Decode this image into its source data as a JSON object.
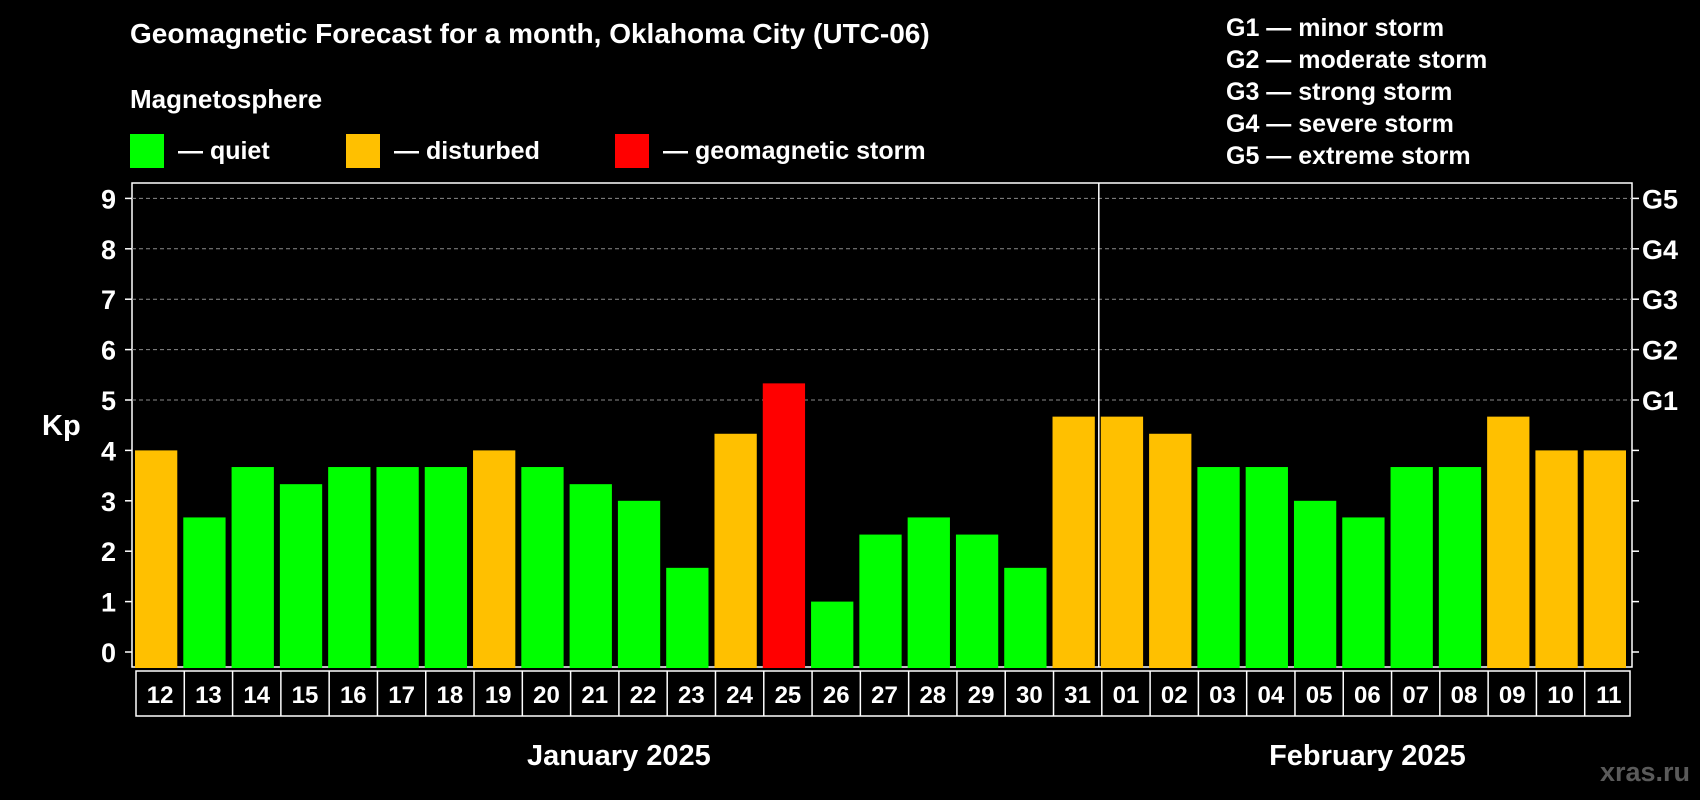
{
  "header": {
    "title": "Geomagnetic Forecast for a month, Oklahoma City (UTC-06)",
    "magnetosphere_label": "Magnetosphere"
  },
  "legend": [
    {
      "label": "— quiet",
      "color": "#00ff00"
    },
    {
      "label": "— disturbed",
      "color": "#ffc000"
    },
    {
      "label": "— geomagnetic storm",
      "color": "#ff0000"
    }
  ],
  "storm_scale": [
    "G1 — minor storm",
    "G2 — moderate storm",
    "G3 — strong storm",
    "G4 — severe storm",
    "G5 — extreme storm"
  ],
  "watermark": "xras.ru",
  "chart_data": {
    "type": "bar",
    "title": "Geomagnetic Forecast for a month, Oklahoma City (UTC-06)",
    "ylabel": "Kp",
    "ylim": [
      0,
      9
    ],
    "yticks": [
      0,
      1,
      2,
      3,
      4,
      5,
      6,
      7,
      8,
      9
    ],
    "right_ticks": [
      {
        "value": 5,
        "label": "G1"
      },
      {
        "value": 6,
        "label": "G2"
      },
      {
        "value": 7,
        "label": "G3"
      },
      {
        "value": 8,
        "label": "G4"
      },
      {
        "value": 9,
        "label": "G5"
      }
    ],
    "grid": "dashed horizontal at 5–9",
    "categories": [
      "12",
      "13",
      "14",
      "15",
      "16",
      "17",
      "18",
      "19",
      "20",
      "21",
      "22",
      "23",
      "24",
      "25",
      "26",
      "27",
      "28",
      "29",
      "30",
      "31",
      "01",
      "02",
      "03",
      "04",
      "05",
      "06",
      "07",
      "08",
      "09",
      "10",
      "11"
    ],
    "values": [
      4.0,
      2.67,
      3.67,
      3.33,
      3.67,
      3.67,
      3.67,
      4.0,
      3.67,
      3.33,
      3.0,
      1.67,
      4.33,
      5.33,
      1.0,
      2.33,
      2.67,
      2.33,
      1.67,
      4.67,
      4.67,
      4.33,
      3.67,
      3.67,
      3.0,
      2.67,
      3.67,
      3.67,
      4.67,
      4.0,
      4.0
    ],
    "levels": [
      "disturbed",
      "quiet",
      "quiet",
      "quiet",
      "quiet",
      "quiet",
      "quiet",
      "disturbed",
      "quiet",
      "quiet",
      "quiet",
      "quiet",
      "disturbed",
      "storm",
      "quiet",
      "quiet",
      "quiet",
      "quiet",
      "quiet",
      "disturbed",
      "disturbed",
      "disturbed",
      "quiet",
      "quiet",
      "quiet",
      "quiet",
      "quiet",
      "quiet",
      "disturbed",
      "disturbed",
      "disturbed"
    ],
    "level_colors": {
      "quiet": "#00ff00",
      "disturbed": "#ffc000",
      "storm": "#ff0000"
    },
    "months": [
      {
        "label": "January 2025",
        "first_index": 0,
        "last_index": 19
      },
      {
        "label": "February 2025",
        "first_index": 20,
        "last_index": 30
      }
    ]
  }
}
